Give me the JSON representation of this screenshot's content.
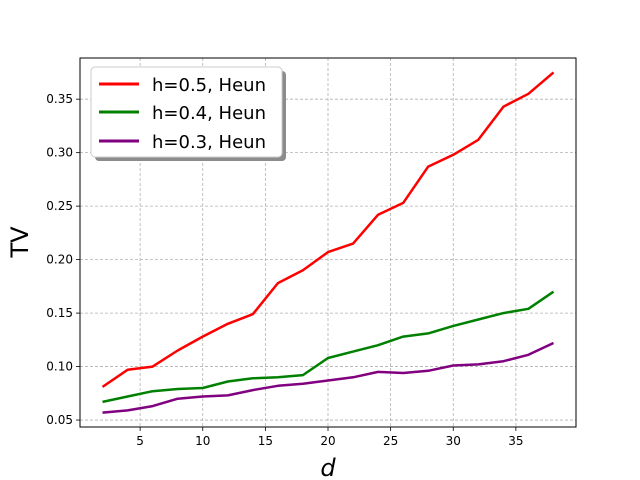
{
  "chart_data": {
    "type": "line",
    "xlabel": "d",
    "ylabel": "TV",
    "xlim": [
      0.2,
      39.8
    ],
    "ylim": [
      0.0435,
      0.3885
    ],
    "xticks": [
      5,
      10,
      15,
      20,
      25,
      30,
      35
    ],
    "yticks": [
      0.05,
      0.1,
      0.15,
      0.2,
      0.25,
      0.3,
      0.35
    ],
    "grid": true,
    "legend_position": "top-left",
    "x": [
      2,
      4,
      6,
      8,
      10,
      12,
      14,
      16,
      18,
      20,
      22,
      24,
      26,
      28,
      30,
      32,
      34,
      36,
      38
    ],
    "series": [
      {
        "name": "h=0.5, Heun",
        "color": "#ff0000",
        "values": [
          0.081,
          0.097,
          0.1,
          0.115,
          0.128,
          0.14,
          0.149,
          0.178,
          0.19,
          0.207,
          0.215,
          0.242,
          0.253,
          0.287,
          0.298,
          0.312,
          0.343,
          0.355,
          0.375
        ]
      },
      {
        "name": "h=0.4, Heun",
        "color": "#008000",
        "values": [
          0.067,
          0.072,
          0.077,
          0.079,
          0.08,
          0.086,
          0.089,
          0.09,
          0.092,
          0.108,
          0.114,
          0.12,
          0.128,
          0.131,
          0.138,
          0.144,
          0.15,
          0.154,
          0.17
        ]
      },
      {
        "name": "h=0.3, Heun",
        "color": "#800080",
        "values": [
          0.057,
          0.059,
          0.063,
          0.07,
          0.072,
          0.073,
          0.078,
          0.082,
          0.084,
          0.087,
          0.09,
          0.095,
          0.094,
          0.096,
          0.101,
          0.102,
          0.105,
          0.111,
          0.122
        ]
      }
    ]
  }
}
